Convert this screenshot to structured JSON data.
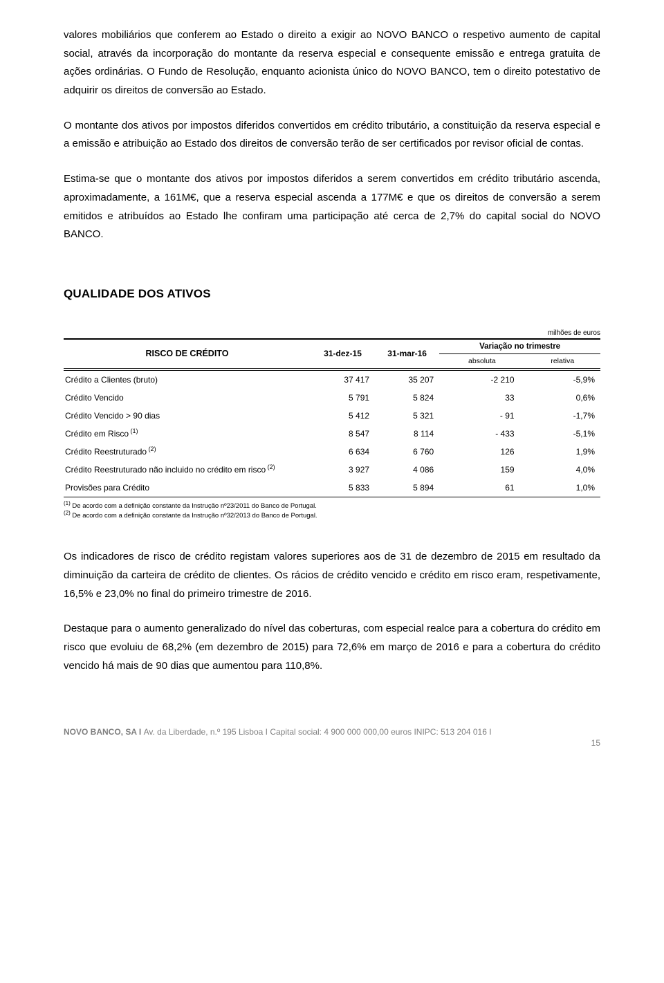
{
  "paragraphs": {
    "p1": "valores mobiliários que conferem ao Estado o direito a exigir ao NOVO BANCO o respetivo aumento de capital social, através da incorporação do montante da reserva especial e consequente emissão e entrega gratuita de ações ordinárias. O Fundo de Resolução, enquanto acionista único do NOVO BANCO, tem o direito potestativo de adquirir os direitos de conversão ao Estado.",
    "p2": "O montante dos ativos por impostos diferidos convertidos em crédito tributário, a constituição da reserva especial e a emissão e atribuição ao Estado dos direitos de conversão terão de ser certificados por revisor oficial de contas.",
    "p3": "Estima-se que o montante dos ativos por impostos diferidos a serem convertidos em crédito tributário ascenda, aproximadamente, a 161M€, que a reserva especial ascenda a 177M€ e que os direitos de conversão a serem emitidos e atribuídos ao Estado lhe confiram uma participação até cerca de 2,7% do capital social do NOVO BANCO.",
    "p4": "Os indicadores de risco de crédito registam valores superiores aos de 31 de dezembro de 2015 em resultado da diminuição da carteira de crédito de clientes. Os rácios de crédito vencido e crédito em risco eram, respetivamente, 16,5% e 23,0% no final do primeiro trimestre de 2016.",
    "p5": "Destaque para o aumento generalizado do nível das coberturas, com especial realce para a cobertura do crédito em risco que evoluiu de 68,2% (em dezembro de 2015) para 72,6% em março de 2016 e para a cobertura do crédito vencido há mais de 90 dias que aumentou para 110,8%."
  },
  "section_heading": "QUALIDADE DOS ATIVOS",
  "table": {
    "units": "milhões de euros",
    "header_main": "RISCO DE CRÉDITO",
    "col1": "31-dez-15",
    "col2": "31-mar-16",
    "var_header": "Variação no trimestre",
    "sub_abs": "absoluta",
    "sub_rel": "relativa",
    "rows": [
      {
        "label": "Crédito a Clientes (bruto)",
        "c1": "37 417",
        "c2": "35 207",
        "abs": "-2 210",
        "rel": "-5,9%",
        "sup": ""
      },
      {
        "label": "Crédito Vencido",
        "c1": "5 791",
        "c2": "5 824",
        "abs": "33",
        "rel": "0,6%",
        "sup": ""
      },
      {
        "label": "Crédito Vencido > 90 dias",
        "c1": "5 412",
        "c2": "5 321",
        "abs": "- 91",
        "rel": "-1,7%",
        "sup": ""
      },
      {
        "label": "Crédito em Risco",
        "c1": "8 547",
        "c2": "8 114",
        "abs": "- 433",
        "rel": "-5,1%",
        "sup": "(1)"
      },
      {
        "label": "Crédito Reestruturado",
        "c1": "6 634",
        "c2": "6 760",
        "abs": "126",
        "rel": "1,9%",
        "sup": "(2)"
      },
      {
        "label": "Crédito Reestruturado não incluido no crédito em risco",
        "c1": "3 927",
        "c2": "4 086",
        "abs": "159",
        "rel": "4,0%",
        "sup": "(2)"
      },
      {
        "label": "Provisões para Crédito",
        "c1": "5 833",
        "c2": "5 894",
        "abs": "61",
        "rel": "1,0%",
        "sup": ""
      }
    ],
    "note1_sup": "(1)",
    "note1": " De acordo com a definição constante da Instrução nº23/2011 do Banco de Portugal.",
    "note2_sup": "(2)",
    "note2": " De acordo com a definição constante da Instrução nº32/2013 do Banco de Portugal."
  },
  "footer": {
    "company": "NOVO BANCO, SA I ",
    "rest": "Av. da Liberdade, n.º 195 Lisboa I Capital social: 4 900 000 000,00 euros INIPC: 513 204 016 I",
    "page": "15"
  }
}
